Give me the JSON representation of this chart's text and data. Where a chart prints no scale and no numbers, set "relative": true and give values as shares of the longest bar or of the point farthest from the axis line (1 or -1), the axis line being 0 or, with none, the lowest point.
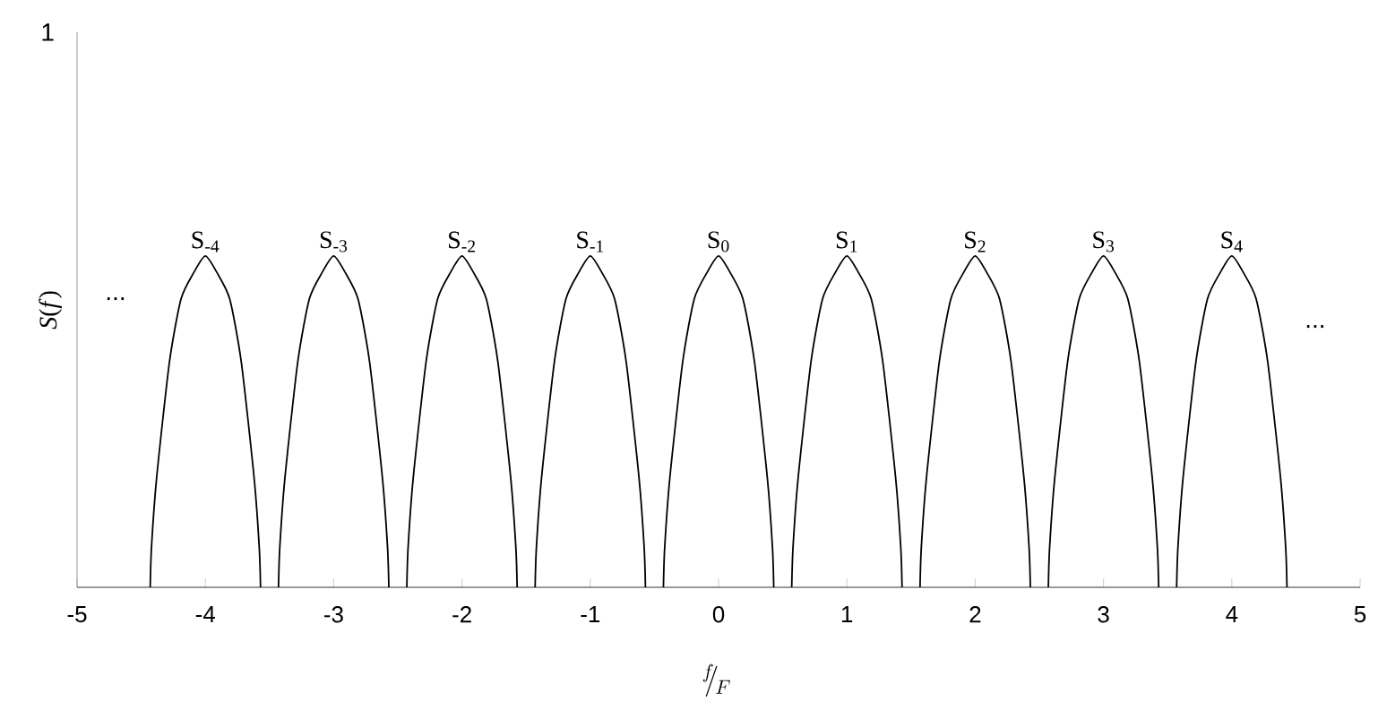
{
  "chart_data": {
    "type": "line",
    "relative": true,
    "xlabel": "^{f}\\!\\!/_{\\!F}",
    "ylabel": "*S*(*f*)",
    "xlim": [
      -5,
      5
    ],
    "xticks": [
      -5,
      -4,
      -3,
      -2,
      -1,
      0,
      1,
      2,
      3,
      4,
      5
    ],
    "series": [
      {
        "color": "#000000",
        "x": [
          -4.43,
          -4.42,
          -4.38,
          -4.28,
          -4.19,
          -4.09,
          -4,
          -3.91,
          -3.81,
          -3.72,
          -3.62,
          -3.58,
          -3.57
        ],
        "values": [
          0,
          0.12,
          0.33,
          0.68,
          0.87,
          0.95,
          1,
          0.95,
          0.87,
          0.68,
          0.33,
          0.12,
          0
        ]
      },
      {
        "color": "#000000",
        "x": [
          -3.43,
          -3.42,
          -3.38,
          -3.28,
          -3.19,
          -3.09,
          -3,
          -2.91,
          -2.81,
          -2.72,
          -2.62,
          -2.58,
          -2.57
        ],
        "values": [
          0,
          0.12,
          0.33,
          0.68,
          0.87,
          0.95,
          1,
          0.95,
          0.87,
          0.68,
          0.33,
          0.12,
          0
        ]
      },
      {
        "color": "#000000",
        "x": [
          -2.43,
          -2.42,
          -2.38,
          -2.28,
          -2.19,
          -2.09,
          -2,
          -1.91,
          -1.81,
          -1.72,
          -1.62,
          -1.58,
          -1.57
        ],
        "values": [
          0,
          0.12,
          0.33,
          0.68,
          0.87,
          0.95,
          1,
          0.95,
          0.87,
          0.68,
          0.33,
          0.12,
          0
        ]
      },
      {
        "color": "#000000",
        "x": [
          -1.43,
          -1.42,
          -1.38,
          -1.28,
          -1.19,
          -1.09,
          -1,
          -0.91,
          -0.81,
          -0.72,
          -0.62,
          -0.58,
          -0.57
        ],
        "values": [
          0,
          0.12,
          0.33,
          0.68,
          0.87,
          0.95,
          1,
          0.95,
          0.87,
          0.68,
          0.33,
          0.12,
          0
        ]
      },
      {
        "color": "#000000",
        "x": [
          -0.43,
          -0.42,
          -0.38,
          -0.28,
          -0.19,
          -0.09,
          0,
          0.09,
          0.19,
          0.28,
          0.38,
          0.42,
          0.43
        ],
        "values": [
          0,
          0.12,
          0.33,
          0.68,
          0.87,
          0.95,
          1,
          0.95,
          0.87,
          0.68,
          0.33,
          0.12,
          0
        ]
      },
      {
        "color": "#000000",
        "x": [
          0.57,
          0.58,
          0.62,
          0.72,
          0.81,
          0.91,
          1,
          1.09,
          1.19,
          1.28,
          1.38,
          1.42,
          1.43
        ],
        "values": [
          0,
          0.12,
          0.33,
          0.68,
          0.87,
          0.95,
          1,
          0.95,
          0.87,
          0.68,
          0.33,
          0.12,
          0
        ]
      },
      {
        "color": "#000000",
        "x": [
          1.57,
          1.58,
          1.62,
          1.72,
          1.81,
          1.91,
          2,
          2.09,
          2.19,
          2.28,
          2.38,
          2.42,
          2.43
        ],
        "values": [
          0,
          0.12,
          0.33,
          0.68,
          0.87,
          0.95,
          1,
          0.95,
          0.87,
          0.68,
          0.33,
          0.12,
          0
        ]
      },
      {
        "color": "#000000",
        "x": [
          2.57,
          2.58,
          2.62,
          2.72,
          2.81,
          2.91,
          3,
          3.09,
          3.19,
          3.28,
          3.38,
          3.42,
          3.43
        ],
        "values": [
          0,
          0.12,
          0.33,
          0.68,
          0.87,
          0.95,
          1,
          0.95,
          0.87,
          0.68,
          0.33,
          0.12,
          0
        ]
      },
      {
        "color": "#000000",
        "x": [
          3.57,
          3.58,
          3.62,
          3.72,
          3.81,
          3.91,
          4,
          4.09,
          4.19,
          4.28,
          4.38,
          4.42,
          4.43
        ],
        "values": [
          0,
          0.12,
          0.33,
          0.68,
          0.87,
          0.95,
          1,
          0.95,
          0.87,
          0.68,
          0.33,
          0.12,
          0
        ]
      }
    ],
    "annotations": [
      {
        "text": "S$_{-4}$",
        "x": -4,
        "y": 1
      },
      {
        "text": "S$_{-3}$",
        "x": -3,
        "y": 1
      },
      {
        "text": "S$_{-2}$",
        "x": -2,
        "y": 1
      },
      {
        "text": "S$_{-1}$",
        "x": -1,
        "y": 1
      },
      {
        "text": "S$_{0}$",
        "x": 0,
        "y": 1
      },
      {
        "text": "S$_{1}$",
        "x": 1,
        "y": 1
      },
      {
        "text": "S$_{2}$",
        "x": 2,
        "y": 1
      },
      {
        "text": "S$_{3}$",
        "x": 3,
        "y": 1
      },
      {
        "text": "S$_{4}$",
        "x": 4,
        "y": 1
      },
      "1",
      "...",
      "..."
    ]
  }
}
